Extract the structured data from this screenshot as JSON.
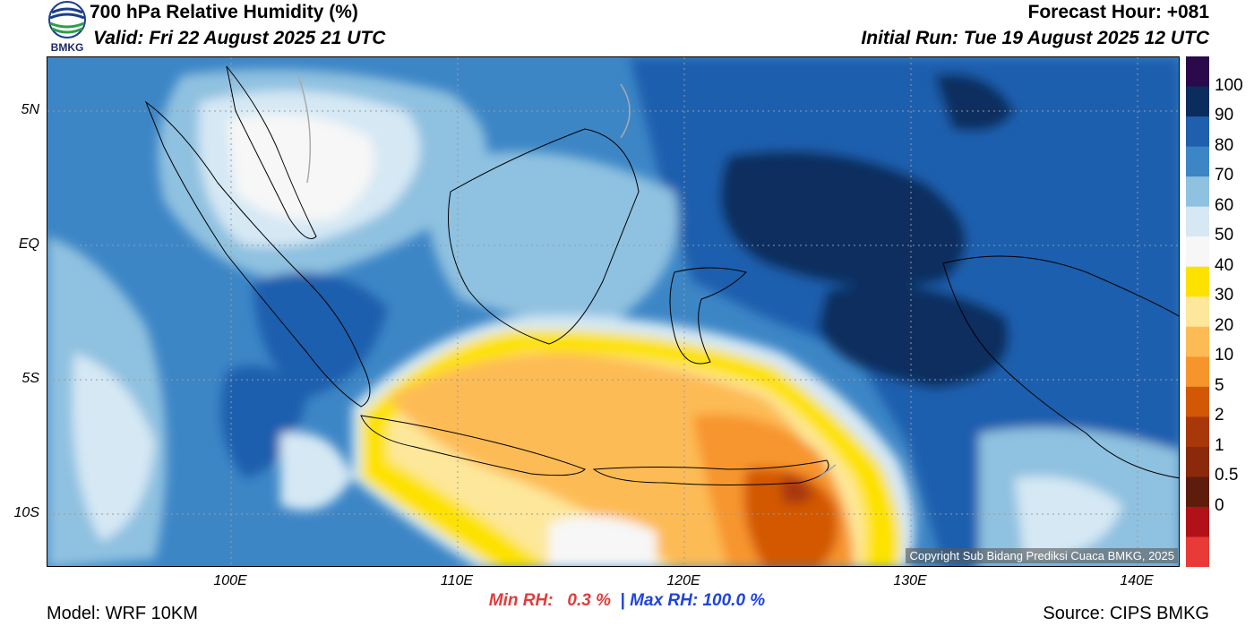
{
  "header": {
    "title": "700 hPa Relative Humidity (%)",
    "valid": "Valid: Fri 22 August 2025 21 UTC",
    "forecast_hour": "Forecast Hour: +081",
    "initial_run": "Initial Run: Tue 19 August 2025 12 UTC",
    "logo_text": "BMKG"
  },
  "axes": {
    "lat_labels": [
      "5N",
      "EQ",
      "5S",
      "10S"
    ],
    "lon_labels": [
      "100E",
      "110E",
      "120E",
      "130E",
      "140E"
    ]
  },
  "colorbar": {
    "labels": [
      "100",
      "90",
      "80",
      "70",
      "60",
      "50",
      "40",
      "30",
      "20",
      "10",
      "5",
      "2",
      "1",
      "0.5",
      "0"
    ],
    "colors": [
      "#2a0a4a",
      "#0b2d5e",
      "#1f5fae",
      "#3d86c6",
      "#8fc1e0",
      "#d5e8f4",
      "#f7f7f7",
      "#fde200",
      "#fde79a",
      "#fdbb55",
      "#f7952d",
      "#d35806",
      "#a8380a",
      "#8a2a0a",
      "#5e1d0c",
      "#b01218",
      "#e83a36"
    ]
  },
  "stats": {
    "min_label": "Min RH:",
    "min_value": "0.3 %",
    "separator": "|",
    "max_label": "Max RH:",
    "max_value": "100.0 %"
  },
  "footer": {
    "model": "Model: WRF 10KM",
    "source": "Source: CIPS BMKG",
    "copyright": "Copyright Sub Bidang Prediksi Cuaca BMKG, 2025"
  }
}
